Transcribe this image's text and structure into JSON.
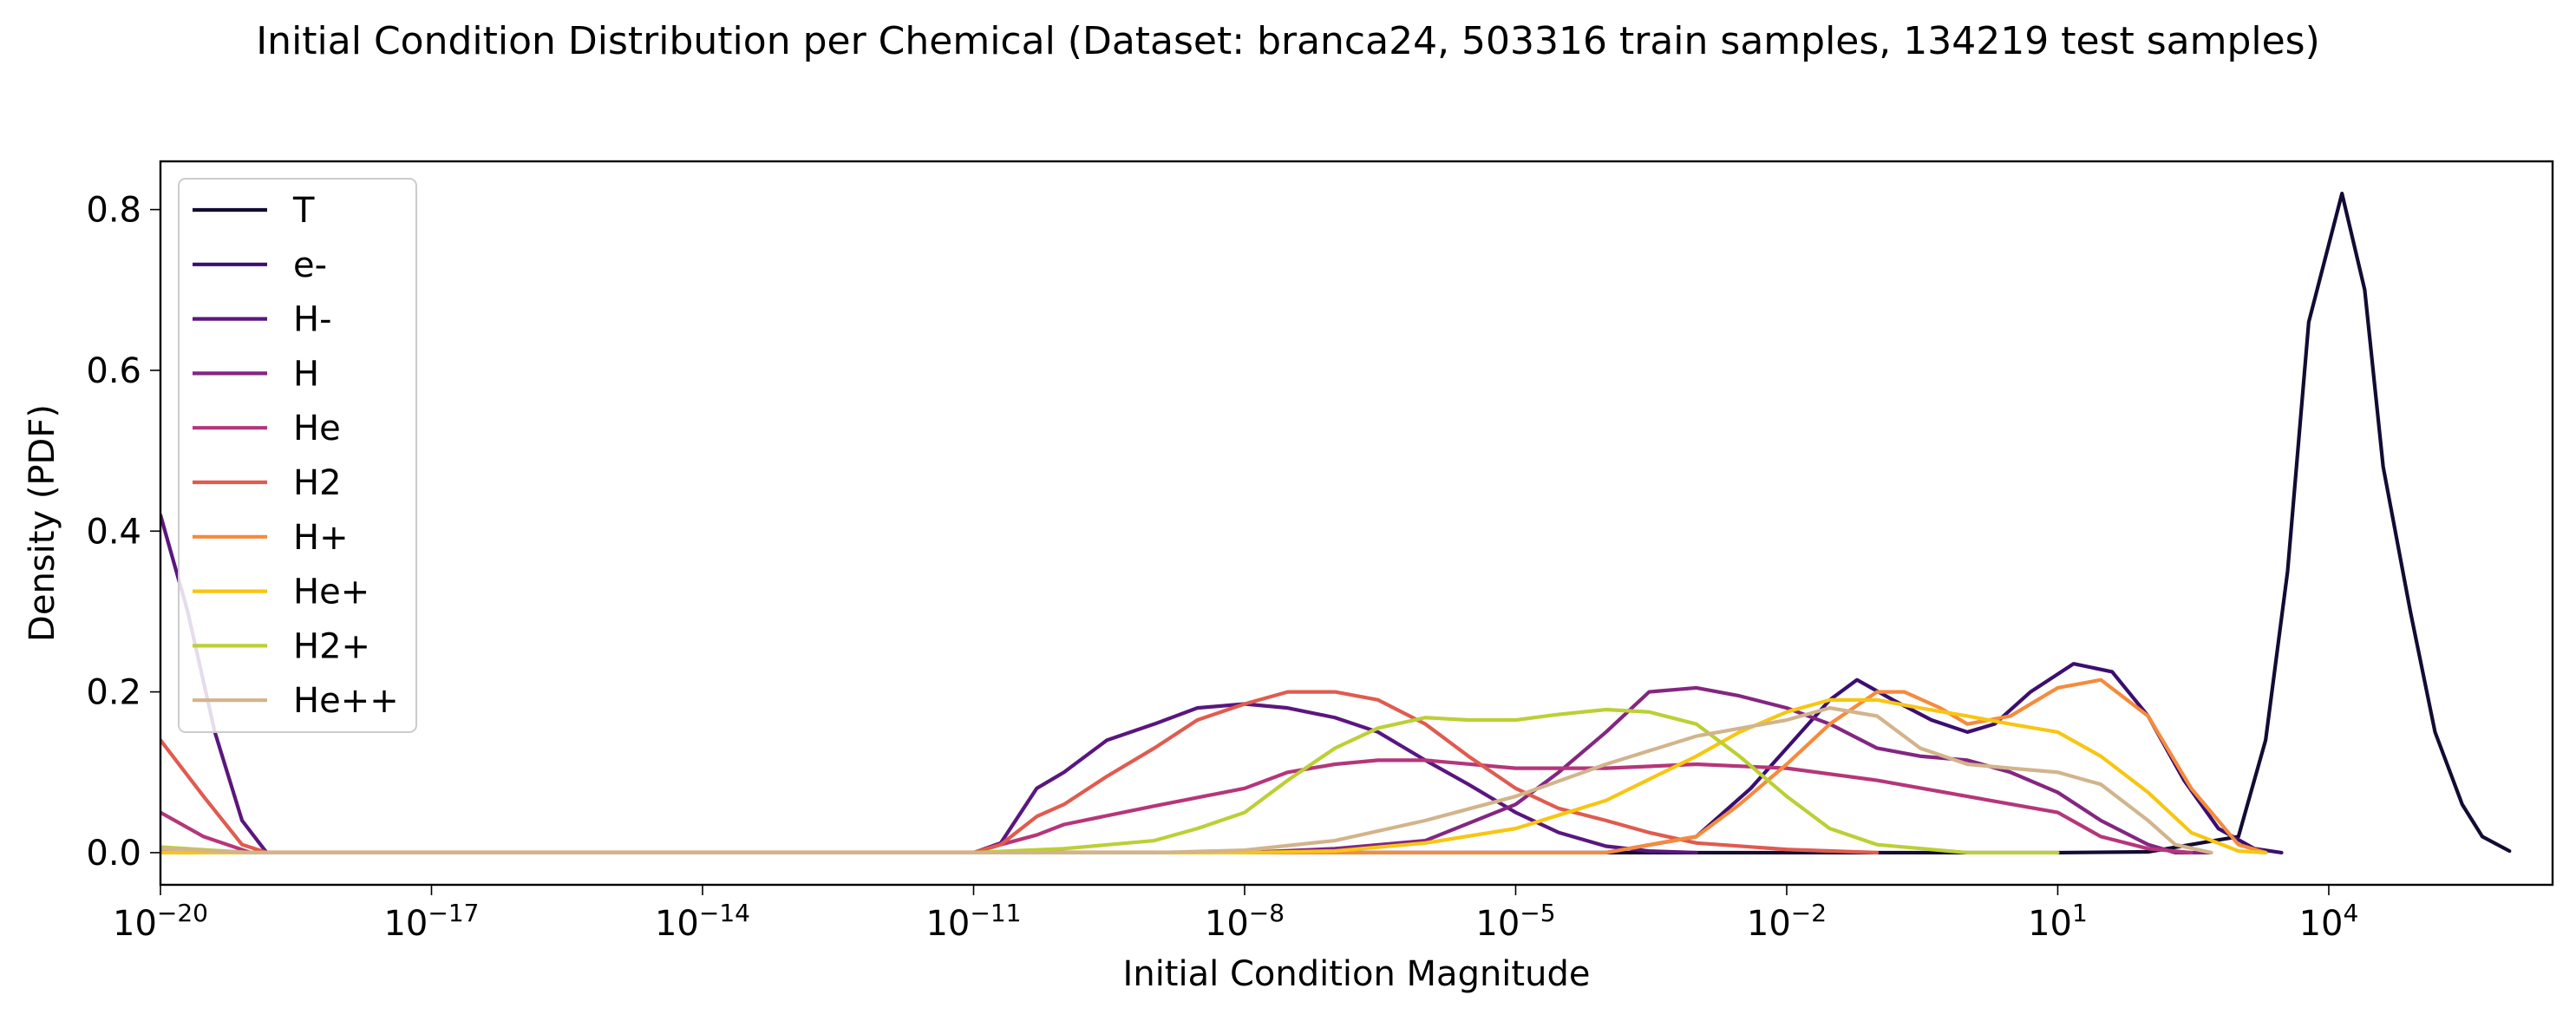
{
  "chart_data": {
    "type": "line",
    "title": "Initial Condition Distribution per Chemical (Dataset: branca24, 503316 train samples, 134219 test samples)",
    "xlabel": "Initial Condition Magnitude",
    "ylabel": "Density (PDF)",
    "xscale": "log",
    "xlim": [
      1e-20,
      3000000.0
    ],
    "ylim": [
      -0.04,
      0.86
    ],
    "grid": false,
    "legend_position": "upper-left",
    "xticks": [
      {
        "value": 1e-20,
        "base": "10",
        "exp": "−20"
      },
      {
        "value": 1e-17,
        "base": "10",
        "exp": "−17"
      },
      {
        "value": 1e-14,
        "base": "10",
        "exp": "−14"
      },
      {
        "value": 1e-11,
        "base": "10",
        "exp": "−11"
      },
      {
        "value": 1e-08,
        "base": "10",
        "exp": "−8"
      },
      {
        "value": 1e-05,
        "base": "10",
        "exp": "−5"
      },
      {
        "value": 0.01,
        "base": "10",
        "exp": "−2"
      },
      {
        "value": 10,
        "base": "10",
        "exp": "1"
      },
      {
        "value": 10000.0,
        "base": "10",
        "exp": "4"
      }
    ],
    "yticks": [
      {
        "value": 0.0,
        "label": "0.0"
      },
      {
        "value": 0.2,
        "label": "0.2"
      },
      {
        "value": 0.4,
        "label": "0.4"
      },
      {
        "value": 0.6,
        "label": "0.6"
      },
      {
        "value": 0.8,
        "label": "0.8"
      }
    ],
    "series": [
      {
        "name": "T",
        "color": "#140b34",
        "points": [
          [
            1e-20,
            0
          ],
          [
            1e-05,
            0
          ],
          [
            0.1,
            0
          ],
          [
            1,
            0
          ],
          [
            10,
            0
          ],
          [
            100,
            0.001
          ],
          [
            1000,
            0.02
          ],
          [
            2000,
            0.14
          ],
          [
            3500,
            0.35
          ],
          [
            6000,
            0.66
          ],
          [
            14000.0,
            0.82
          ],
          [
            25000.0,
            0.7
          ],
          [
            40000.0,
            0.48
          ],
          [
            80000.0,
            0.3
          ],
          [
            150000.0,
            0.15
          ],
          [
            300000.0,
            0.06
          ],
          [
            500000.0,
            0.02
          ],
          [
            1000000.0,
            0.002
          ]
        ]
      },
      {
        "name": "e-",
        "color": "#3b0f6f",
        "points": [
          [
            1e-20,
            0
          ],
          [
            1e-06,
            0
          ],
          [
            0.0001,
            0
          ],
          [
            0.001,
            0.02
          ],
          [
            0.004,
            0.08
          ],
          [
            0.01,
            0.13
          ],
          [
            0.03,
            0.19
          ],
          [
            0.06,
            0.215
          ],
          [
            0.15,
            0.19
          ],
          [
            0.4,
            0.165
          ],
          [
            1,
            0.15
          ],
          [
            2,
            0.16
          ],
          [
            5,
            0.2
          ],
          [
            15,
            0.235
          ],
          [
            40,
            0.225
          ],
          [
            100,
            0.17
          ],
          [
            250,
            0.09
          ],
          [
            600,
            0.03
          ],
          [
            1500,
            0.005
          ],
          [
            3000,
            0
          ]
        ]
      },
      {
        "name": "H-",
        "color": "#5a167e",
        "points": [
          [
            1e-20,
            0.42
          ],
          [
            2e-20,
            0.3
          ],
          [
            4e-20,
            0.15
          ],
          [
            8e-20,
            0.04
          ],
          [
            1.5e-19,
            0
          ],
          [
            1e-11,
            0
          ],
          [
            2e-11,
            0.012
          ],
          [
            5e-11,
            0.08
          ],
          [
            1e-10,
            0.1
          ],
          [
            3e-10,
            0.14
          ],
          [
            1e-09,
            0.16
          ],
          [
            3e-09,
            0.18
          ],
          [
            1e-08,
            0.185
          ],
          [
            3e-08,
            0.18
          ],
          [
            1e-07,
            0.168
          ],
          [
            3e-07,
            0.15
          ],
          [
            1e-06,
            0.115
          ],
          [
            3e-06,
            0.085
          ],
          [
            1e-05,
            0.05
          ],
          [
            3e-05,
            0.025
          ],
          [
            0.0001,
            0.008
          ],
          [
            0.0003,
            0.002
          ],
          [
            0.001,
            0
          ]
        ]
      },
      {
        "name": "H",
        "color": "#842681",
        "points": [
          [
            1e-20,
            0
          ],
          [
            1e-09,
            0
          ],
          [
            1e-08,
            0
          ],
          [
            1e-07,
            0.005
          ],
          [
            1e-06,
            0.015
          ],
          [
            1e-05,
            0.06
          ],
          [
            3e-05,
            0.1
          ],
          [
            0.0001,
            0.15
          ],
          [
            0.0003,
            0.2
          ],
          [
            0.001,
            0.205
          ],
          [
            0.003,
            0.195
          ],
          [
            0.01,
            0.18
          ],
          [
            0.03,
            0.16
          ],
          [
            0.1,
            0.13
          ],
          [
            0.3,
            0.12
          ],
          [
            1,
            0.115
          ],
          [
            3,
            0.1
          ],
          [
            10,
            0.075
          ],
          [
            30,
            0.04
          ],
          [
            100,
            0.01
          ],
          [
            200,
            0
          ],
          [
            500,
            0
          ]
        ]
      },
      {
        "name": "He",
        "color": "#b5367a",
        "points": [
          [
            1e-20,
            0.05
          ],
          [
            3e-20,
            0.02
          ],
          [
            1e-19,
            0
          ],
          [
            1e-11,
            0
          ],
          [
            2e-11,
            0.01
          ],
          [
            5e-11,
            0.022
          ],
          [
            1e-10,
            0.035
          ],
          [
            1e-09,
            0.058
          ],
          [
            1e-08,
            0.08
          ],
          [
            3e-08,
            0.1
          ],
          [
            1e-07,
            0.11
          ],
          [
            3e-07,
            0.115
          ],
          [
            1e-06,
            0.115
          ],
          [
            1e-05,
            0.105
          ],
          [
            0.0001,
            0.105
          ],
          [
            0.001,
            0.11
          ],
          [
            0.01,
            0.105
          ],
          [
            0.1,
            0.09
          ],
          [
            1,
            0.07
          ],
          [
            10,
            0.05
          ],
          [
            30,
            0.02
          ],
          [
            100,
            0.005
          ],
          [
            300,
            0
          ]
        ]
      },
      {
        "name": "H2",
        "color": "#e05b4f",
        "points": [
          [
            1e-20,
            0.14
          ],
          [
            3e-20,
            0.07
          ],
          [
            8e-20,
            0.01
          ],
          [
            1.5e-19,
            0
          ],
          [
            1e-11,
            0
          ],
          [
            2e-11,
            0.01
          ],
          [
            5e-11,
            0.045
          ],
          [
            1e-10,
            0.06
          ],
          [
            3e-10,
            0.095
          ],
          [
            1e-09,
            0.13
          ],
          [
            3e-09,
            0.165
          ],
          [
            1e-08,
            0.185
          ],
          [
            3e-08,
            0.2
          ],
          [
            1e-07,
            0.2
          ],
          [
            3e-07,
            0.19
          ],
          [
            1e-06,
            0.16
          ],
          [
            3e-06,
            0.12
          ],
          [
            1e-05,
            0.08
          ],
          [
            3e-05,
            0.055
          ],
          [
            0.0001,
            0.04
          ],
          [
            0.0003,
            0.025
          ],
          [
            0.001,
            0.012
          ],
          [
            0.01,
            0.004
          ],
          [
            0.1,
            0
          ]
        ]
      },
      {
        "name": "H+",
        "color": "#f58b3c",
        "points": [
          [
            1e-20,
            0
          ],
          [
            1e-06,
            0
          ],
          [
            0.0001,
            0
          ],
          [
            0.001,
            0.02
          ],
          [
            0.003,
            0.06
          ],
          [
            0.01,
            0.11
          ],
          [
            0.03,
            0.16
          ],
          [
            0.1,
            0.2
          ],
          [
            0.2,
            0.2
          ],
          [
            0.5,
            0.18
          ],
          [
            1,
            0.16
          ],
          [
            3,
            0.17
          ],
          [
            10,
            0.205
          ],
          [
            30,
            0.215
          ],
          [
            100,
            0.17
          ],
          [
            300,
            0.08
          ],
          [
            1000,
            0.01
          ],
          [
            2000,
            0
          ]
        ]
      },
      {
        "name": "He+",
        "color": "#f7c613",
        "points": [
          [
            1e-20,
            0
          ],
          [
            1e-08,
            0
          ],
          [
            1e-07,
            0.002
          ],
          [
            1e-06,
            0.012
          ],
          [
            1e-05,
            0.03
          ],
          [
            0.0001,
            0.065
          ],
          [
            0.001,
            0.12
          ],
          [
            0.003,
            0.15
          ],
          [
            0.01,
            0.175
          ],
          [
            0.03,
            0.19
          ],
          [
            0.1,
            0.19
          ],
          [
            0.3,
            0.18
          ],
          [
            1,
            0.17
          ],
          [
            3,
            0.16
          ],
          [
            10,
            0.15
          ],
          [
            30,
            0.12
          ],
          [
            100,
            0.075
          ],
          [
            300,
            0.025
          ],
          [
            1000,
            0.002
          ],
          [
            2000,
            0
          ]
        ]
      },
      {
        "name": "H2+",
        "color": "#bccf35",
        "points": [
          [
            1e-20,
            0.007
          ],
          [
            1e-19,
            0
          ],
          [
            1e-11,
            0
          ],
          [
            1e-10,
            0.005
          ],
          [
            1e-09,
            0.015
          ],
          [
            3e-09,
            0.03
          ],
          [
            1e-08,
            0.05
          ],
          [
            3e-08,
            0.09
          ],
          [
            1e-07,
            0.13
          ],
          [
            3e-07,
            0.155
          ],
          [
            1e-06,
            0.168
          ],
          [
            3e-06,
            0.165
          ],
          [
            1e-05,
            0.165
          ],
          [
            3e-05,
            0.172
          ],
          [
            0.0001,
            0.178
          ],
          [
            0.0003,
            0.175
          ],
          [
            0.001,
            0.16
          ],
          [
            0.003,
            0.12
          ],
          [
            0.01,
            0.07
          ],
          [
            0.03,
            0.03
          ],
          [
            0.1,
            0.01
          ],
          [
            1,
            0
          ],
          [
            10,
            0
          ]
        ]
      },
      {
        "name": "He++",
        "color": "#d2b48c",
        "points": [
          [
            1e-20,
            0.005
          ],
          [
            1e-19,
            0
          ],
          [
            1e-09,
            0
          ],
          [
            1e-08,
            0.003
          ],
          [
            1e-07,
            0.015
          ],
          [
            1e-06,
            0.04
          ],
          [
            1e-05,
            0.07
          ],
          [
            0.0001,
            0.11
          ],
          [
            0.001,
            0.145
          ],
          [
            0.01,
            0.165
          ],
          [
            0.03,
            0.18
          ],
          [
            0.1,
            0.17
          ],
          [
            0.3,
            0.13
          ],
          [
            1,
            0.11
          ],
          [
            3,
            0.105
          ],
          [
            10,
            0.1
          ],
          [
            30,
            0.085
          ],
          [
            100,
            0.04
          ],
          [
            200,
            0.01
          ],
          [
            500,
            0
          ]
        ]
      }
    ]
  }
}
